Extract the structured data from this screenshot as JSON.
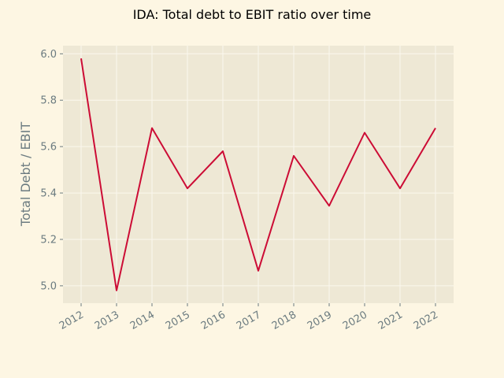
{
  "chart_data": {
    "type": "line",
    "title": "IDA: Total debt to EBIT ratio over time",
    "xlabel": "",
    "ylabel": "Total Debt / EBIT",
    "x": [
      "2012",
      "2013",
      "2014",
      "2015",
      "2016",
      "2017",
      "2018",
      "2019",
      "2020",
      "2021",
      "2022"
    ],
    "series": [
      {
        "values": [
          5.98,
          4.98,
          5.68,
          5.42,
          5.58,
          5.065,
          5.56,
          5.345,
          5.66,
          5.42,
          5.68
        ]
      }
    ],
    "yticks": [
      5.0,
      5.2,
      5.4,
      5.6,
      5.8,
      6.0
    ],
    "ylim": [
      4.925,
      6.035
    ],
    "grid": true,
    "legend": "none",
    "colors": {
      "figure_background": "#fdf6e3",
      "plot_background": "#eee8d5",
      "line": "#cc0c35",
      "grid": "#fbf7ee",
      "text": "#6b7b80"
    }
  }
}
